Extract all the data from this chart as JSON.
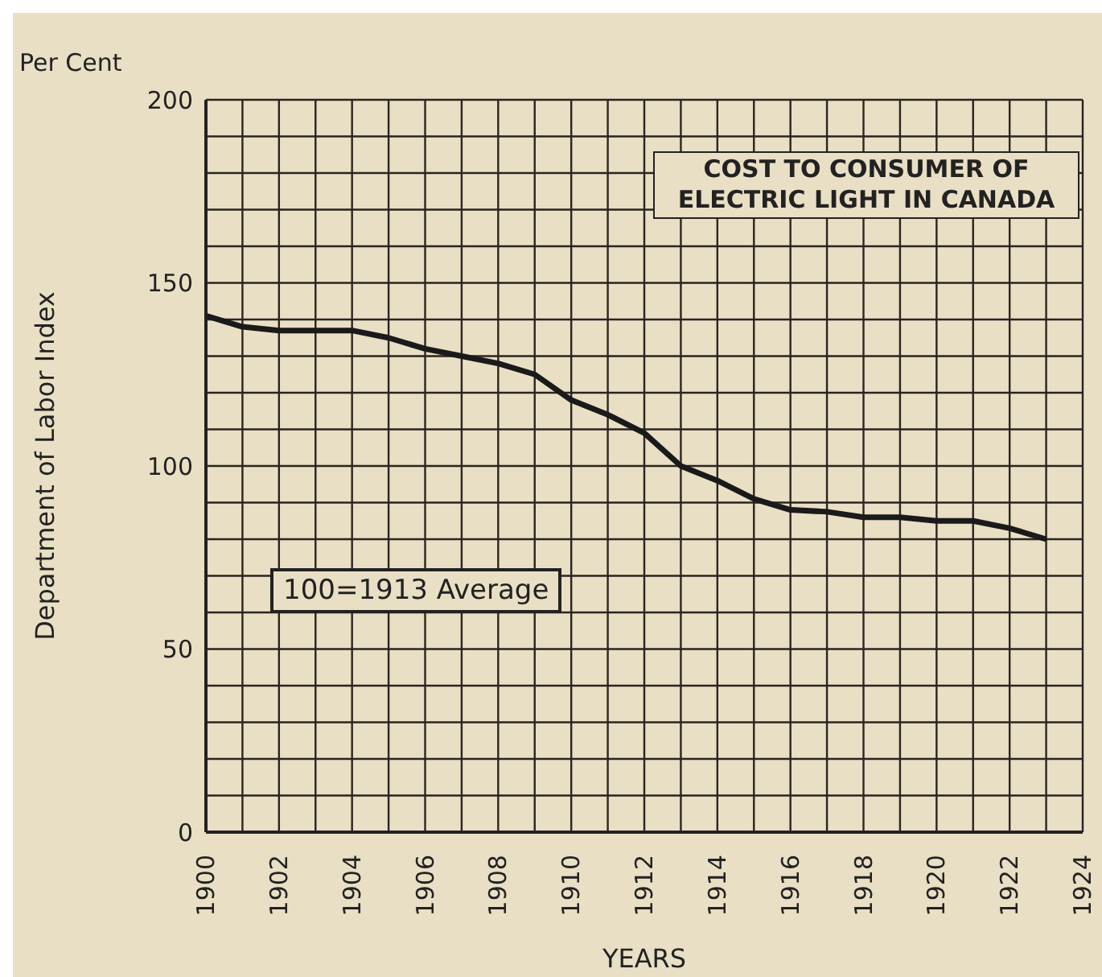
{
  "chart_data": {
    "type": "line",
    "title": "COST TO CONSUMER OF ELECTRIC LIGHT IN CANADA",
    "xlabel": "YEARS",
    "ylabel": "Department of Labor Index",
    "annotations": [
      "Per Cent",
      "100=1913 Average"
    ],
    "x": [
      1900,
      1901,
      1902,
      1903,
      1904,
      1905,
      1906,
      1907,
      1908,
      1909,
      1910,
      1911,
      1912,
      1913,
      1914,
      1915,
      1916,
      1917,
      1918,
      1919,
      1920,
      1921,
      1922,
      1923
    ],
    "series": [
      {
        "color": "#1a1a1a",
        "values": [
          141,
          138,
          137,
          137,
          137,
          135,
          132,
          130,
          128,
          125,
          118,
          114,
          109,
          100,
          96,
          91,
          88,
          87.5,
          86,
          86,
          85,
          85,
          83,
          80
        ]
      }
    ],
    "xlim": [
      1900,
      1924
    ],
    "xticks": [
      1900,
      {
        "value": 1901,
        "label": null
      },
      1902,
      {
        "value": 1903,
        "label": null
      },
      1904,
      {
        "value": 1905,
        "label": null
      },
      1906,
      {
        "value": 1907,
        "label": null
      },
      1908,
      {
        "value": 1909,
        "label": null
      },
      1910,
      {
        "value": 1911,
        "label": null
      },
      1912,
      {
        "value": 1913,
        "label": null
      },
      1914,
      {
        "value": 1915,
        "label": null
      },
      1916,
      {
        "value": 1917,
        "label": null
      },
      1918,
      {
        "value": 1919,
        "label": null
      },
      1920,
      {
        "value": 1921,
        "label": null
      },
      1922,
      {
        "value": 1923,
        "label": null
      },
      1924
    ],
    "ylim": [
      0,
      200
    ],
    "yticks": [
      0,
      {
        "value": 10,
        "label": null
      },
      {
        "value": 20,
        "label": null
      },
      {
        "value": 30,
        "label": null
      },
      {
        "value": 40,
        "label": null
      },
      50,
      {
        "value": 60,
        "label": null
      },
      {
        "value": 70,
        "label": null
      },
      {
        "value": 80,
        "label": null
      },
      {
        "value": 90,
        "label": null
      },
      100,
      {
        "value": 110,
        "label": null
      },
      {
        "value": 120,
        "label": null
      },
      {
        "value": 130,
        "label": null
      },
      {
        "value": 140,
        "label": null
      },
      150,
      {
        "value": 160,
        "label": null
      },
      {
        "value": 170,
        "label": null
      },
      {
        "value": 180,
        "label": null
      },
      {
        "value": 190,
        "label": null
      },
      200
    ],
    "grid": true,
    "legend": false
  }
}
